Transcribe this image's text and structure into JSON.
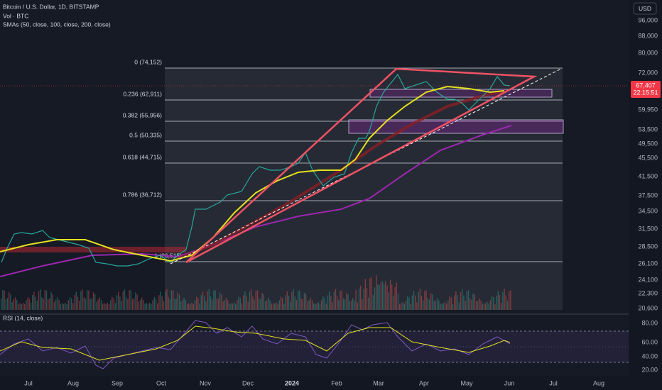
{
  "header": {
    "symbol": "Bitcoin / U.S. Dollar, 1D, BITSTAMP",
    "volume": "Vol · BTC",
    "indicator": "SMAs (50, close, 100, close, 200, close)",
    "currency": "USD"
  },
  "price_axis": [
    "96,000",
    "88,000",
    "80,000",
    "72,000",
    "59,950",
    "53,500",
    "49,500",
    "45,500",
    "41,500",
    "37,500",
    "34,500",
    "31,500",
    "28,500",
    "26,100",
    "24,100",
    "22,300",
    "20,600"
  ],
  "current_price": "67,407",
  "countdown": "22:15:51",
  "fib_levels": [
    "0 (74,152)",
    "0.236 (62,911)",
    "0.382 (55,956)",
    "0.5 (50,335)",
    "0.618 (44,715)",
    "0.786 (36,712)",
    "1 (26,515)"
  ],
  "time_axis": [
    "Jul",
    "Aug",
    "Sep",
    "Oct",
    "Nov",
    "Dec",
    "2024",
    "Feb",
    "Mar",
    "Apr",
    "May",
    "Jun",
    "Jul",
    "Aug"
  ],
  "rsi": {
    "label": "RSI (14, close)",
    "axis": [
      "80.00",
      "60.00",
      "40.00",
      "20.00"
    ]
  }
}
